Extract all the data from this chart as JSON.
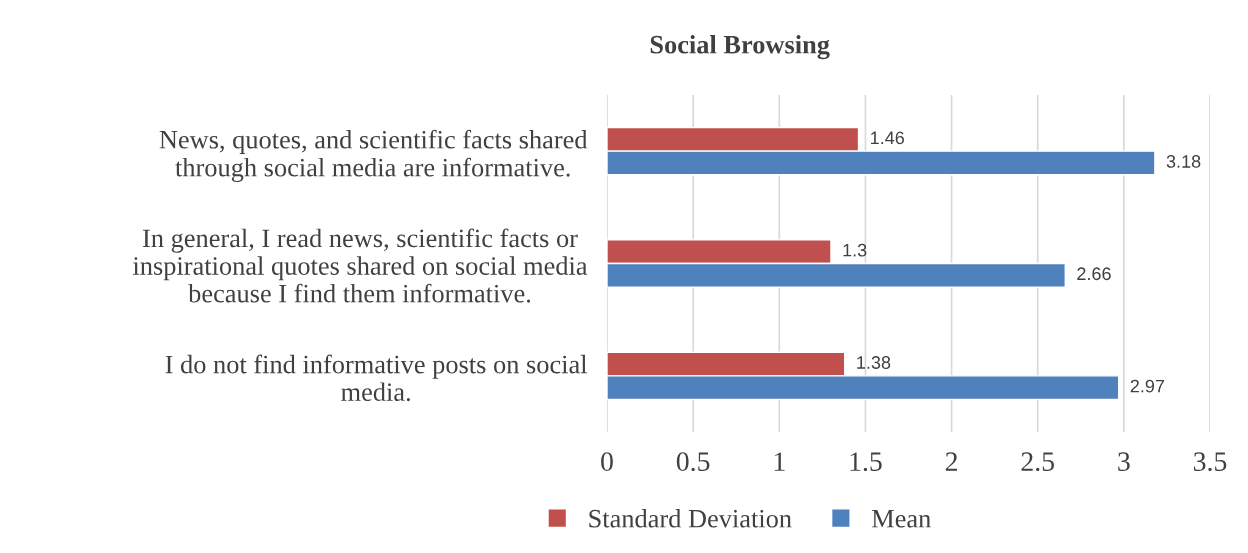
{
  "chart_data": {
    "type": "bar",
    "orientation": "horizontal",
    "title": "Social Browsing",
    "categories": [
      "News, quotes, and scientific facts shared\nthrough social media are informative.",
      "In general, I read news, scientific facts or\ninspirational quotes shared on social media\nbecause I find them informative.",
      "I do not find informative posts on social\nmedia."
    ],
    "series": [
      {
        "name": "Standard Deviation",
        "color": "#c0504d",
        "values": [
          1.46,
          1.3,
          1.38
        ]
      },
      {
        "name": "Mean",
        "color": "#4f81bd",
        "values": [
          3.18,
          2.66,
          2.97
        ]
      }
    ],
    "xlim": [
      0,
      3.5
    ],
    "xticks": [
      0,
      0.5,
      1,
      1.5,
      2,
      2.5,
      3,
      3.5
    ],
    "grid": "x",
    "legend": "bottom",
    "data_labels": true
  }
}
